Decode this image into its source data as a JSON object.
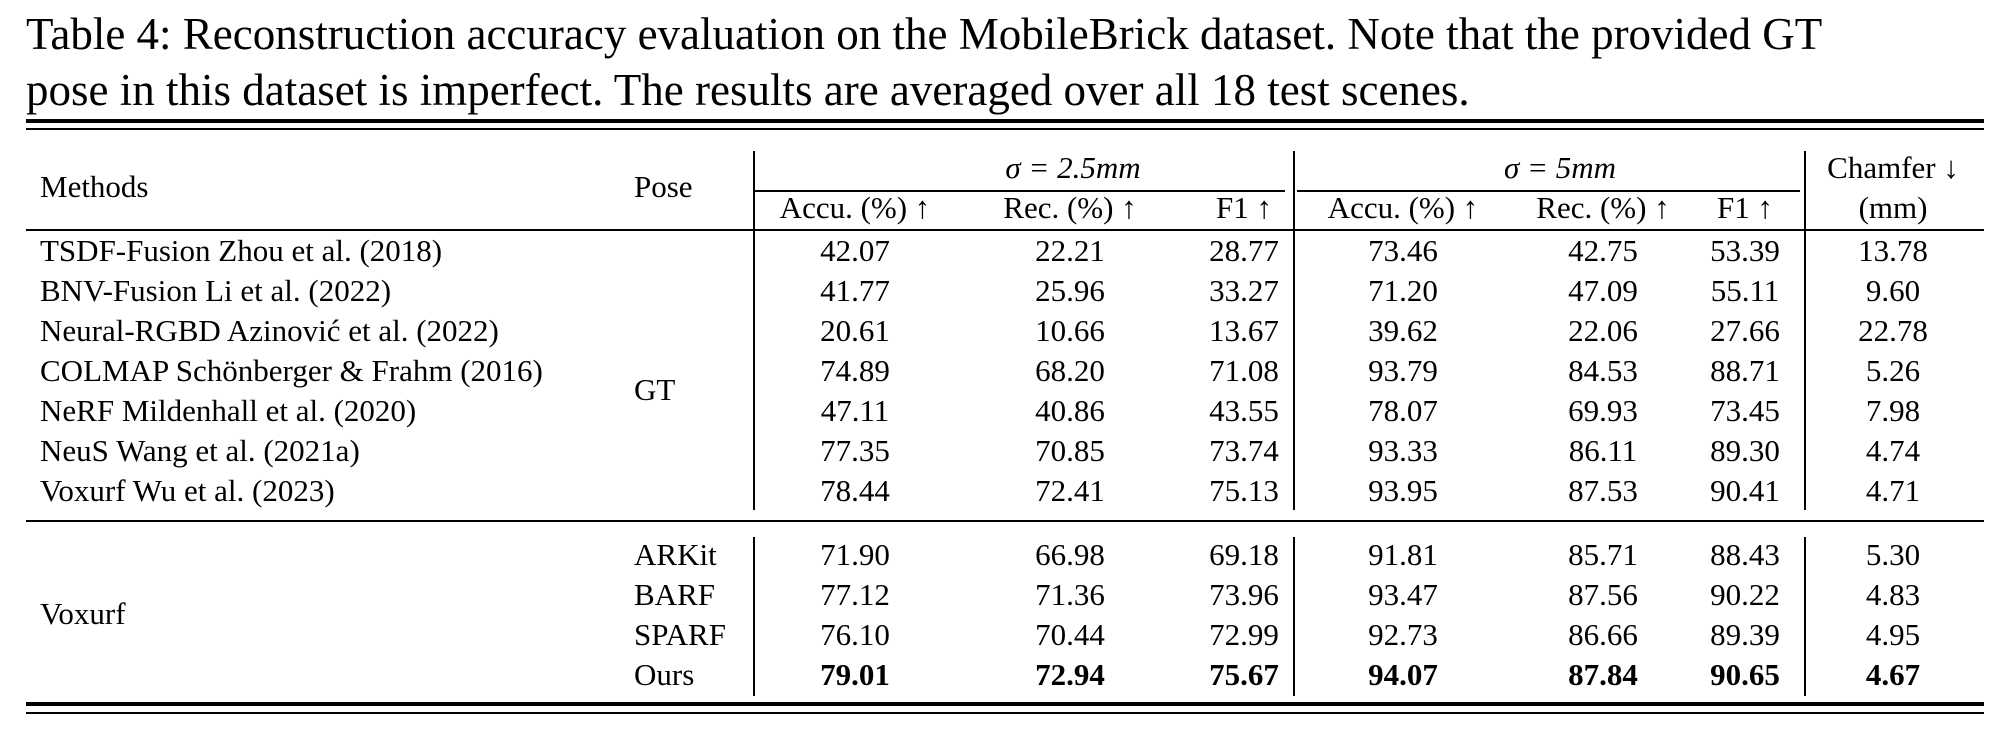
{
  "caption": {
    "line1": "Table 4: Reconstruction accuracy evaluation on the MobileBrick dataset. Note that the provided GT",
    "line2": "pose in this dataset is imperfect. The results are averaged over all 18 test scenes."
  },
  "header": {
    "methods": "Methods",
    "pose": "Pose",
    "group1": "σ = 2.5mm",
    "group2": "σ = 5mm",
    "chamfer": "Chamfer ↓",
    "chamfer_unit": "(mm)",
    "g1_cols": [
      "Accu. (%) ↑",
      "Rec. (%) ↑",
      "F1 ↑"
    ],
    "g2_cols": [
      "Accu. (%) ↑",
      "Rec. (%) ↑",
      "F1 ↑"
    ]
  },
  "gt_block": {
    "pose": "GT",
    "rows": [
      {
        "method": "TSDF-Fusion Zhou et al. (2018)",
        "values": [
          "42.07",
          "22.21",
          "28.77",
          "73.46",
          "42.75",
          "53.39",
          "13.78"
        ]
      },
      {
        "method": "BNV-Fusion Li et al. (2022)",
        "values": [
          "41.77",
          "25.96",
          "33.27",
          "71.20",
          "47.09",
          "55.11",
          "9.60"
        ]
      },
      {
        "method": "Neural-RGBD Azinović et al. (2022)",
        "values": [
          "20.61",
          "10.66",
          "13.67",
          "39.62",
          "22.06",
          "27.66",
          "22.78"
        ]
      },
      {
        "method": "COLMAP Schönberger & Frahm (2016)",
        "values": [
          "74.89",
          "68.20",
          "71.08",
          "93.79",
          "84.53",
          "88.71",
          "5.26"
        ]
      },
      {
        "method": "NeRF Mildenhall et al. (2020)",
        "values": [
          "47.11",
          "40.86",
          "43.55",
          "78.07",
          "69.93",
          "73.45",
          "7.98"
        ]
      },
      {
        "method": "NeuS Wang et al. (2021a)",
        "values": [
          "77.35",
          "70.85",
          "73.74",
          "93.33",
          "86.11",
          "89.30",
          "4.74"
        ]
      },
      {
        "method": "Voxurf Wu et al. (2023)",
        "values": [
          "78.44",
          "72.41",
          "75.13",
          "93.95",
          "87.53",
          "90.41",
          "4.71"
        ]
      }
    ]
  },
  "voxurf_block": {
    "method": "Voxurf",
    "rows": [
      {
        "pose": "ARKit",
        "values": [
          "71.90",
          "66.98",
          "69.18",
          "91.81",
          "85.71",
          "88.43",
          "5.30"
        ]
      },
      {
        "pose": "BARF",
        "values": [
          "77.12",
          "71.36",
          "73.96",
          "93.47",
          "87.56",
          "90.22",
          "4.83"
        ]
      },
      {
        "pose": "SPARF",
        "values": [
          "76.10",
          "70.44",
          "72.99",
          "92.73",
          "86.66",
          "89.39",
          "4.95"
        ]
      },
      {
        "pose": "Ours",
        "values": [
          "79.01",
          "72.94",
          "75.67",
          "94.07",
          "87.84",
          "90.65",
          "4.67"
        ],
        "bold": true
      }
    ]
  }
}
